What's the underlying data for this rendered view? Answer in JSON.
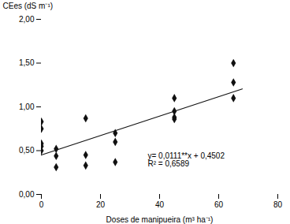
{
  "chart_data": {
    "type": "scatter",
    "xlabel": "Doses de manipueira (m³ ha⁻¹)",
    "ylabel": "CEes (dS m⁻¹)",
    "series": [
      {
        "type": "scatter",
        "marker": "diamond",
        "color": "#111111",
        "x": [
          0,
          0,
          0,
          0,
          0,
          5,
          5,
          5,
          15,
          15,
          15,
          25,
          25,
          25,
          45,
          45,
          45,
          45,
          65,
          65,
          65
        ],
        "values": [
          0.83,
          0.75,
          0.58,
          0.55,
          0.5,
          0.52,
          0.44,
          0.31,
          0.87,
          0.45,
          0.33,
          0.7,
          0.6,
          0.37,
          1.1,
          0.95,
          0.88,
          0.86,
          1.5,
          1.28,
          1.1
        ]
      },
      {
        "type": "line",
        "color": "#111111",
        "x": [
          0,
          68
        ],
        "values": [
          0.4502,
          1.205
        ]
      }
    ],
    "annotations": [
      {
        "text": "y= 0,0111**x + 0,4502\nR² = 0,6589",
        "x": 36,
        "y": 0.47
      }
    ],
    "xlim": [
      0,
      80
    ],
    "ylim": [
      0.0,
      2.0
    ],
    "xticks": [
      0,
      20,
      40,
      60,
      80
    ],
    "yticks": [
      {
        "value": 0.0,
        "label": "0,00"
      },
      {
        "value": 0.5,
        "label": "0,50"
      },
      {
        "value": 1.0,
        "label": "1,00"
      },
      {
        "value": 1.5,
        "label": "1,50"
      },
      {
        "value": 2.0,
        "label": "2,00"
      }
    ],
    "grid": false
  }
}
